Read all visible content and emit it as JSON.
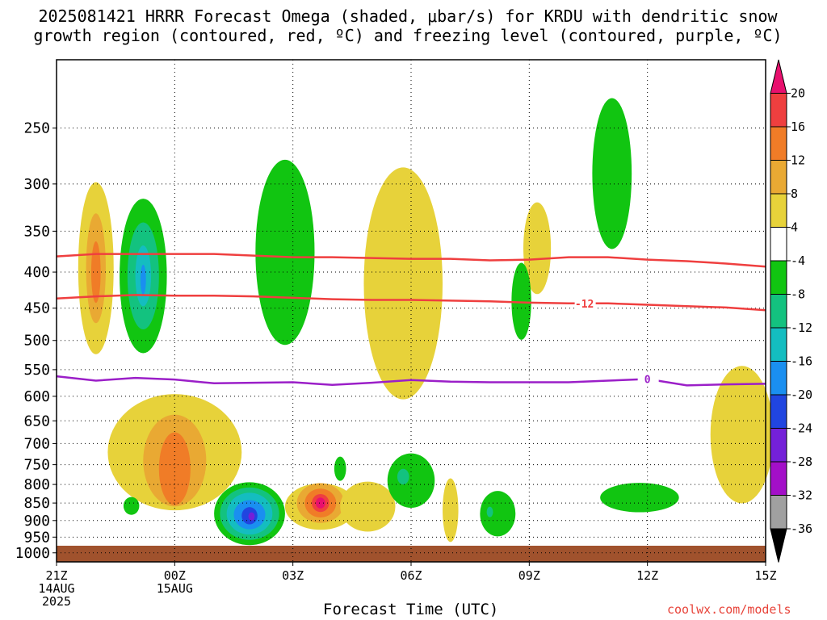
{
  "title_line1": "2025081421 HRRR Forecast Omega (shaded, μbar/s) for KRDU with dendritic snow",
  "title_line2": "growth region (contoured, red, ºC) and freezing level (contoured, purple, ºC)",
  "xlabel": "Forecast Time (UTC)",
  "credit": "coolwx.com/models",
  "chart_data": {
    "type": "contour-time-height",
    "x_range": [
      0,
      18
    ],
    "x_ticks": [
      {
        "x": 0,
        "lines": [
          "21Z",
          "14AUG",
          "2025"
        ]
      },
      {
        "x": 3,
        "lines": [
          "00Z",
          "15AUG"
        ]
      },
      {
        "x": 6,
        "lines": [
          "03Z"
        ]
      },
      {
        "x": 9,
        "lines": [
          "06Z"
        ]
      },
      {
        "x": 12,
        "lines": [
          "09Z"
        ]
      },
      {
        "x": 15,
        "lines": [
          "12Z"
        ]
      },
      {
        "x": 18,
        "lines": [
          "15Z"
        ]
      }
    ],
    "y_ticks": [
      250,
      300,
      350,
      400,
      450,
      500,
      550,
      600,
      650,
      700,
      750,
      800,
      850,
      900,
      950,
      1000
    ],
    "y_range_hpa": [
      200,
      1030
    ],
    "grid": true,
    "surface_color": "#a0522d",
    "colorbar": {
      "labels": [
        "20",
        "16",
        "12",
        "8",
        "4",
        "-4",
        "-8",
        "-12",
        "-16",
        "-20",
        "-24",
        "-28",
        "-32",
        "-36"
      ],
      "colors": [
        "#e8106e",
        "#ef3f3f",
        "#f07c27",
        "#e9a933",
        "#e7d23a",
        "#ffffff",
        "#11c511",
        "#13c27f",
        "#14bdc0",
        "#1a8ff0",
        "#2045e0",
        "#7420d8",
        "#a30fc8",
        "#a0a0a0",
        "#000000"
      ]
    },
    "contours": [
      {
        "name": "-12",
        "color": "#ef3f3f",
        "label_x": 13.4,
        "points": [
          [
            0,
            436
          ],
          [
            1,
            433
          ],
          [
            2,
            431
          ],
          [
            3,
            432
          ],
          [
            4,
            432
          ],
          [
            5,
            433
          ],
          [
            6,
            435
          ],
          [
            7,
            437
          ],
          [
            8,
            438
          ],
          [
            9,
            438
          ],
          [
            10,
            439
          ],
          [
            11,
            440
          ],
          [
            12,
            442
          ],
          [
            13,
            443
          ],
          [
            14,
            443
          ],
          [
            15,
            445
          ],
          [
            16,
            447
          ],
          [
            17,
            449
          ],
          [
            18,
            453
          ]
        ]
      },
      {
        "name": "",
        "color": "#ef3f3f",
        "label_x": null,
        "points": [
          [
            0,
            380
          ],
          [
            1,
            377
          ],
          [
            2,
            377
          ],
          [
            3,
            377
          ],
          [
            4,
            377
          ],
          [
            5,
            379
          ],
          [
            6,
            381
          ],
          [
            7,
            381
          ],
          [
            8,
            382
          ],
          [
            9,
            383
          ],
          [
            10,
            383
          ],
          [
            11,
            385
          ],
          [
            12,
            384
          ],
          [
            13,
            381
          ],
          [
            14,
            381
          ],
          [
            15,
            384
          ],
          [
            16,
            386
          ],
          [
            17,
            389
          ],
          [
            18,
            393
          ]
        ]
      },
      {
        "name": "0",
        "color": "#9b1fc8",
        "label_x": 15.0,
        "points": [
          [
            0,
            562
          ],
          [
            1,
            570
          ],
          [
            2,
            565
          ],
          [
            3,
            568
          ],
          [
            4,
            575
          ],
          [
            5,
            574
          ],
          [
            6,
            573
          ],
          [
            7,
            578
          ],
          [
            8,
            574
          ],
          [
            9,
            569
          ],
          [
            10,
            572
          ],
          [
            11,
            573
          ],
          [
            12,
            573
          ],
          [
            13,
            573
          ],
          [
            14,
            570
          ],
          [
            15,
            567
          ],
          [
            16,
            579
          ],
          [
            17,
            577
          ],
          [
            18,
            576
          ]
        ]
      }
    ],
    "omega_blobs": [
      {
        "color": "#e7d23a",
        "center": [
          1.0,
          395
        ],
        "rx": 0.45,
        "ry": 108
      },
      {
        "color": "#e9a933",
        "center": [
          1.0,
          395
        ],
        "rx": 0.25,
        "ry": 70
      },
      {
        "color": "#f07c27",
        "center": [
          1.0,
          400
        ],
        "rx": 0.12,
        "ry": 40
      },
      {
        "color": "#11c511",
        "center": [
          2.2,
          405
        ],
        "rx": 0.6,
        "ry": 100
      },
      {
        "color": "#13c27f",
        "center": [
          2.2,
          405
        ],
        "rx": 0.4,
        "ry": 70
      },
      {
        "color": "#14bdc0",
        "center": [
          2.2,
          405
        ],
        "rx": 0.2,
        "ry": 40
      },
      {
        "color": "#1a8ff0",
        "center": [
          2.2,
          410
        ],
        "rx": 0.07,
        "ry": 20
      },
      {
        "color": "#11c511",
        "center": [
          5.8,
          375
        ],
        "rx": 0.75,
        "ry": 110
      },
      {
        "color": "#e7d23a",
        "center": [
          8.8,
          415
        ],
        "rx": 1.0,
        "ry": 150
      },
      {
        "color": "#e7d23a",
        "center": [
          12.2,
          370
        ],
        "rx": 0.35,
        "ry": 55
      },
      {
        "color": "#11c511",
        "center": [
          11.8,
          440
        ],
        "rx": 0.25,
        "ry": 55
      },
      {
        "color": "#11c511",
        "center": [
          14.1,
          290
        ],
        "rx": 0.5,
        "ry": 70
      },
      {
        "color": "#e7d23a",
        "center": [
          3.0,
          720
        ],
        "rx": 1.7,
        "ry": 135
      },
      {
        "color": "#e9a933",
        "center": [
          3.0,
          740
        ],
        "rx": 0.8,
        "ry": 110
      },
      {
        "color": "#f07c27",
        "center": [
          3.0,
          760
        ],
        "rx": 0.4,
        "ry": 90
      },
      {
        "color": "#11c511",
        "center": [
          1.9,
          858
        ],
        "rx": 0.2,
        "ry": 25
      },
      {
        "color": "#11c511",
        "center": [
          4.9,
          880
        ],
        "rx": 0.9,
        "ry": 90
      },
      {
        "color": "#13c27f",
        "center": [
          4.9,
          880
        ],
        "rx": 0.75,
        "ry": 75
      },
      {
        "color": "#14bdc0",
        "center": [
          4.9,
          880
        ],
        "rx": 0.58,
        "ry": 60
      },
      {
        "color": "#1a8ff0",
        "center": [
          4.9,
          883
        ],
        "rx": 0.4,
        "ry": 42
      },
      {
        "color": "#2045e0",
        "center": [
          4.9,
          886
        ],
        "rx": 0.2,
        "ry": 25
      },
      {
        "color": "#7420d8",
        "center": [
          4.95,
          888
        ],
        "rx": 0.08,
        "ry": 12
      },
      {
        "color": "#e7d23a",
        "center": [
          6.7,
          860
        ],
        "rx": 0.9,
        "ry": 65
      },
      {
        "color": "#e9a933",
        "center": [
          6.7,
          850
        ],
        "rx": 0.6,
        "ry": 55
      },
      {
        "color": "#f07c27",
        "center": [
          6.7,
          850
        ],
        "rx": 0.4,
        "ry": 40
      },
      {
        "color": "#ef3f3f",
        "center": [
          6.7,
          850
        ],
        "rx": 0.22,
        "ry": 25
      },
      {
        "color": "#e8106e",
        "center": [
          6.7,
          850
        ],
        "rx": 0.12,
        "ry": 15
      },
      {
        "color": "#11c511",
        "center": [
          7.2,
          760
        ],
        "rx": 0.15,
        "ry": 30
      },
      {
        "color": "#e7d23a",
        "center": [
          7.9,
          860
        ],
        "rx": 0.7,
        "ry": 70
      },
      {
        "color": "#11c511",
        "center": [
          9.0,
          790
        ],
        "rx": 0.6,
        "ry": 70
      },
      {
        "color": "#13c27f",
        "center": [
          8.8,
          780
        ],
        "rx": 0.15,
        "ry": 20
      },
      {
        "color": "#e7d23a",
        "center": [
          10.0,
          870
        ],
        "rx": 0.2,
        "ry": 90
      },
      {
        "color": "#11c511",
        "center": [
          11.2,
          880
        ],
        "rx": 0.45,
        "ry": 65
      },
      {
        "color": "#13c27f",
        "center": [
          11.0,
          875
        ],
        "rx": 0.08,
        "ry": 15
      },
      {
        "color": "#11c511",
        "center": [
          14.8,
          835
        ],
        "rx": 1.0,
        "ry": 40
      },
      {
        "color": "#e7d23a",
        "center": [
          17.4,
          680
        ],
        "rx": 0.8,
        "ry": 150
      }
    ]
  }
}
